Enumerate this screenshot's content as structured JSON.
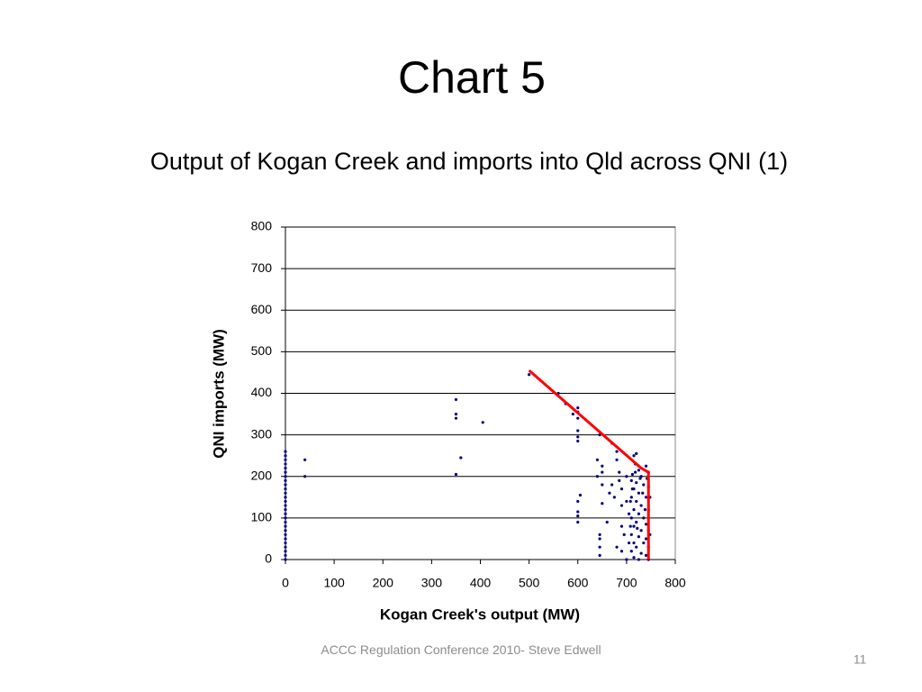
{
  "slide": {
    "heading": "Chart 5",
    "footer": "ACCC Regulation Conference 2010- Steve Edwell",
    "page": 11
  },
  "chart_data": {
    "type": "scatter",
    "title": "Output of Kogan Creek and imports into Qld across QNI (1)",
    "x_label": "Kogan Creek's output (MW)",
    "y_label": "QNI imports (MW)",
    "xlim": [
      0,
      800
    ],
    "xticks": [
      0,
      100,
      200,
      300,
      400,
      500,
      600,
      700,
      800
    ],
    "ylim": [
      0,
      800
    ],
    "yticks": [
      0,
      100,
      200,
      300,
      400,
      500,
      600,
      700,
      800
    ],
    "grid": "y",
    "series": [
      {
        "style": "markers",
        "color": "#000080",
        "x": [
          0,
          0,
          0,
          0,
          0,
          0,
          0,
          0,
          0,
          0,
          0,
          0,
          0,
          0,
          0,
          0,
          0,
          0,
          0,
          0,
          0,
          0,
          0,
          0,
          0,
          0,
          0,
          40,
          40,
          350,
          350,
          350,
          360,
          350,
          405,
          500,
          560,
          575,
          590,
          600,
          600,
          600,
          600,
          600,
          600,
          600,
          600,
          600,
          605,
          600,
          640,
          645,
          650,
          650,
          650,
          650,
          640,
          645,
          645,
          645,
          645,
          660,
          665,
          670,
          670,
          675,
          680,
          680,
          680,
          685,
          685,
          690,
          690,
          690,
          695,
          690,
          700,
          700,
          705,
          705,
          715,
          720,
          718,
          725,
          712,
          730,
          740,
          745,
          710,
          720,
          735,
          715,
          745,
          725,
          710,
          740,
          720,
          730,
          715,
          745,
          725,
          710,
          735,
          720,
          740,
          715,
          730,
          745,
          710,
          725,
          740,
          715,
          735,
          720,
          745,
          710,
          730,
          740,
          715,
          725,
          745,
          700,
          712,
          728,
          718,
          733,
          722,
          738,
          742,
          748,
          748,
          708,
          708
        ],
        "y": [
          0,
          10,
          20,
          30,
          40,
          50,
          60,
          70,
          80,
          90,
          100,
          110,
          120,
          130,
          140,
          150,
          160,
          170,
          180,
          190,
          200,
          210,
          220,
          230,
          240,
          250,
          260,
          240,
          200,
          385,
          350,
          340,
          245,
          205,
          330,
          445,
          400,
          375,
          350,
          365,
          355,
          340,
          310,
          295,
          285,
          115,
          105,
          90,
          155,
          140,
          240,
          300,
          225,
          210,
          180,
          135,
          200,
          60,
          50,
          30,
          10,
          90,
          160,
          280,
          180,
          150,
          30,
          260,
          240,
          210,
          190,
          170,
          130,
          80,
          60,
          20,
          200,
          140,
          110,
          40,
          250,
          255,
          230,
          215,
          205,
          200,
          225,
          210,
          190,
          185,
          180,
          170,
          175,
          160,
          150,
          150,
          140,
          130,
          120,
          120,
          110,
          100,
          100,
          90,
          85,
          80,
          70,
          70,
          60,
          55,
          50,
          40,
          40,
          30,
          30,
          20,
          15,
          10,
          5,
          0,
          0,
          0,
          170,
          195,
          210,
          160,
          75,
          120,
          195,
          60,
          150,
          140,
          80
        ]
      },
      {
        "style": "line",
        "color": "#ff0000",
        "x": [
          500,
          730,
          745,
          745
        ],
        "y": [
          455,
          220,
          210,
          0
        ]
      }
    ]
  }
}
